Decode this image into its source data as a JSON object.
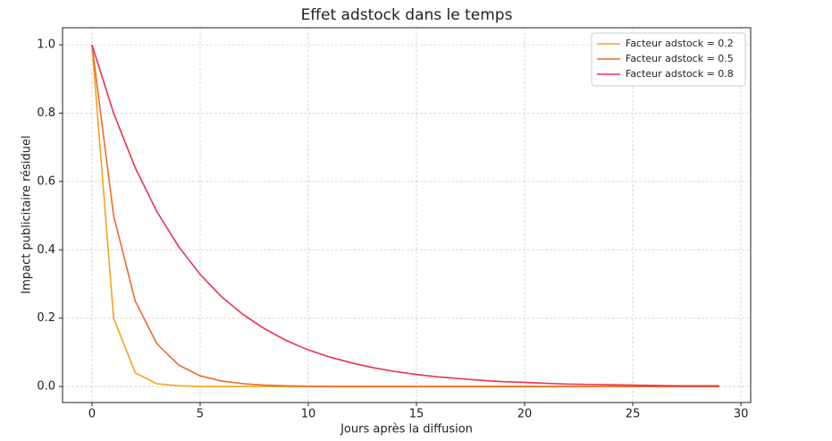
{
  "chart_data": {
    "type": "line",
    "title": "Effet adstock dans le temps",
    "x_label": "Jours après la diffusion",
    "y_label": "Impact publicitaire résiduel",
    "x": [
      0,
      1,
      2,
      3,
      4,
      5,
      6,
      7,
      8,
      9,
      10,
      11,
      12,
      13,
      14,
      15,
      16,
      17,
      18,
      19,
      20,
      21,
      22,
      23,
      24,
      25,
      26,
      27,
      28,
      29
    ],
    "series": [
      {
        "name": "Facteur adstock = 0.2",
        "color": "#f7a21b",
        "values": [
          1,
          0.2,
          0.04,
          0.008,
          0.002,
          0,
          0,
          0,
          0,
          0,
          0,
          0,
          0,
          0,
          0,
          0,
          0,
          0,
          0,
          0,
          0,
          0,
          0,
          0,
          0,
          0,
          0,
          0,
          0,
          0
        ]
      },
      {
        "name": "Facteur adstock = 0.5",
        "color": "#ee6a2c",
        "values": [
          1,
          0.5,
          0.25,
          0.125,
          0.063,
          0.031,
          0.016,
          0.008,
          0.004,
          0.002,
          0.001,
          0,
          0,
          0,
          0,
          0,
          0,
          0,
          0,
          0,
          0,
          0,
          0,
          0,
          0,
          0,
          0,
          0,
          0,
          0
        ]
      },
      {
        "name": "Facteur adstock = 0.8",
        "color": "#e8344e",
        "values": [
          1,
          0.8,
          0.64,
          0.512,
          0.41,
          0.328,
          0.262,
          0.21,
          0.168,
          0.134,
          0.107,
          0.086,
          0.069,
          0.055,
          0.044,
          0.035,
          0.028,
          0.023,
          0.018,
          0.014,
          0.012,
          0.009,
          0.007,
          0.006,
          0.005,
          0.004,
          0.003,
          0.002,
          0.002,
          0.002
        ]
      }
    ],
    "xlim": [
      -1.36,
      30.45
    ],
    "ylim": [
      -0.047,
      1.05
    ],
    "xticks": [
      0,
      5,
      10,
      15,
      20,
      25,
      30
    ],
    "yticks": [
      {
        "value": 0,
        "label": "0.0"
      },
      0.2,
      0.4,
      0.6,
      0.8,
      {
        "value": 1,
        "label": "1.0"
      }
    ],
    "grid": true,
    "legend": "upper right"
  }
}
